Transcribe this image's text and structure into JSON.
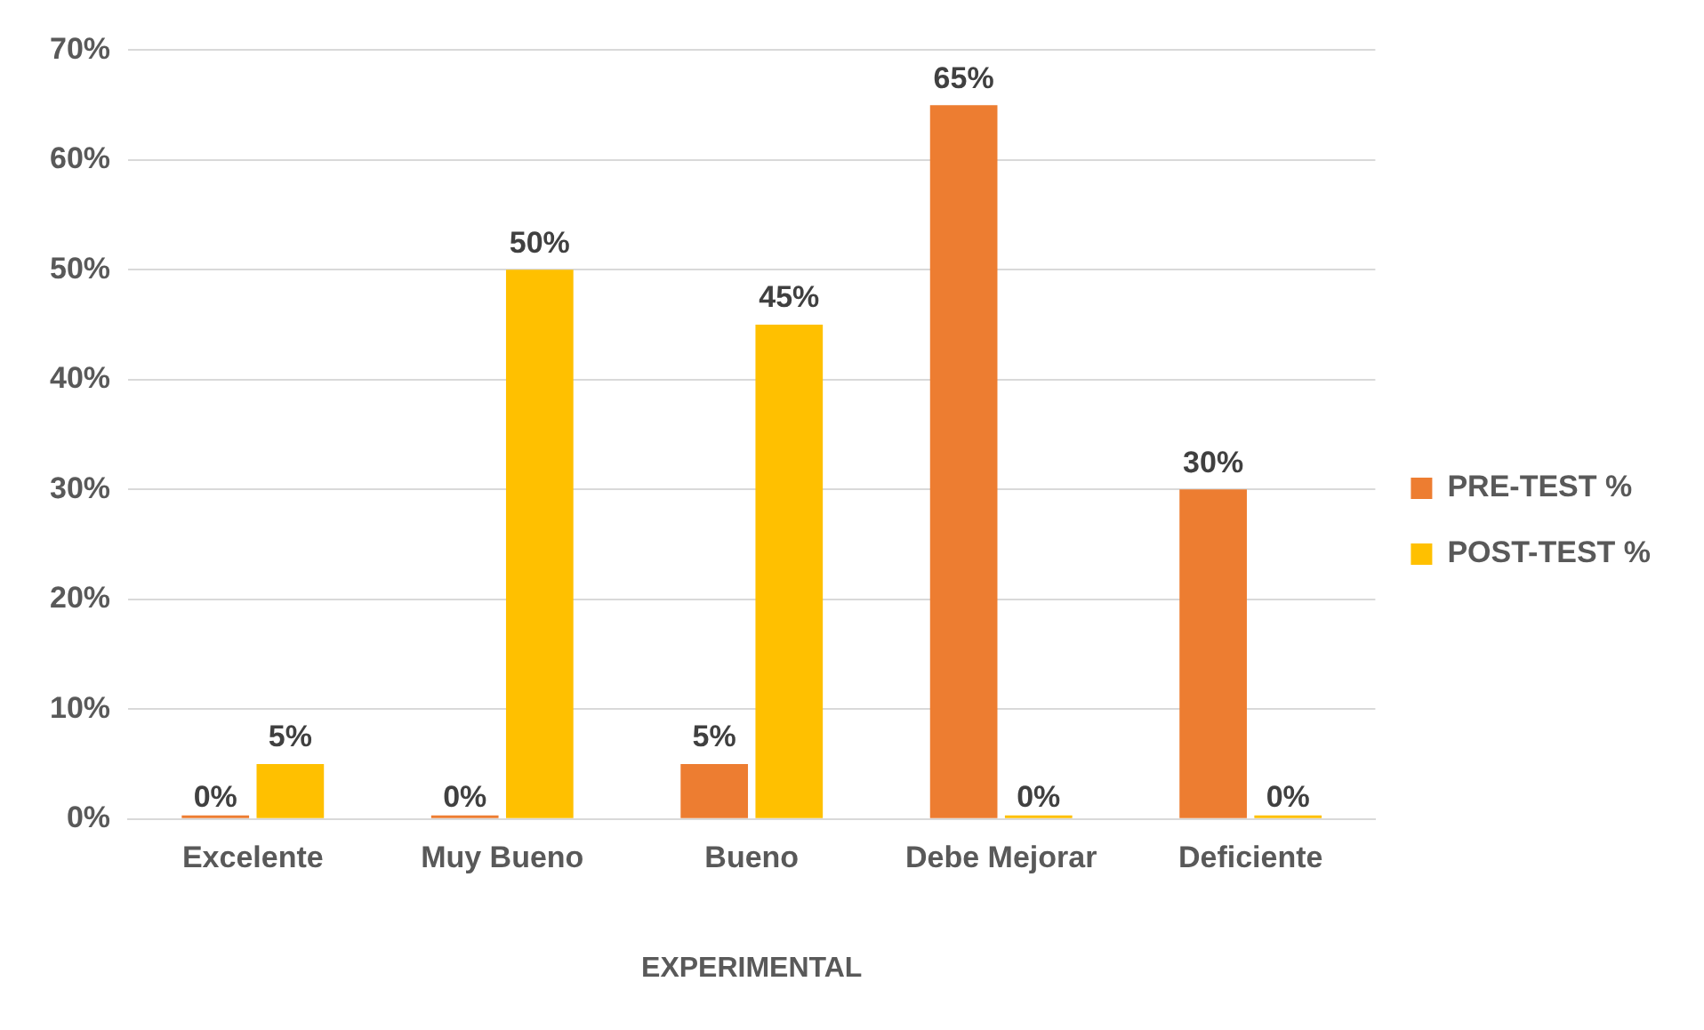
{
  "chart_data": {
    "type": "bar",
    "xlabel": "EXPERIMENTAL",
    "categories": [
      "Excelente",
      "Muy Bueno",
      "Bueno",
      "Debe Mejorar",
      "Deficiente"
    ],
    "series": [
      {
        "name": "PRE-TEST %",
        "color": "#ed7d31",
        "values": [
          0,
          0,
          5,
          65,
          30
        ],
        "value_labels": [
          "0%",
          "0%",
          "5%",
          "65%",
          "30%"
        ]
      },
      {
        "name": "POST-TEST %",
        "color": "#ffc000",
        "values": [
          5,
          50,
          45,
          0,
          0
        ],
        "value_labels": [
          "5%",
          "50%",
          "45%",
          "0%",
          "0%"
        ]
      }
    ],
    "ylim": [
      0,
      70
    ],
    "yticks": [
      {
        "value": 0,
        "label": "0%"
      },
      {
        "value": 10,
        "label": "10%"
      },
      {
        "value": 20,
        "label": "20%"
      },
      {
        "value": 30,
        "label": "30%"
      },
      {
        "value": 40,
        "label": "40%"
      },
      {
        "value": 50,
        "label": "50%"
      },
      {
        "value": 60,
        "label": "60%"
      },
      {
        "value": 70,
        "label": "70%"
      }
    ],
    "grid": "y",
    "legend": "right"
  }
}
